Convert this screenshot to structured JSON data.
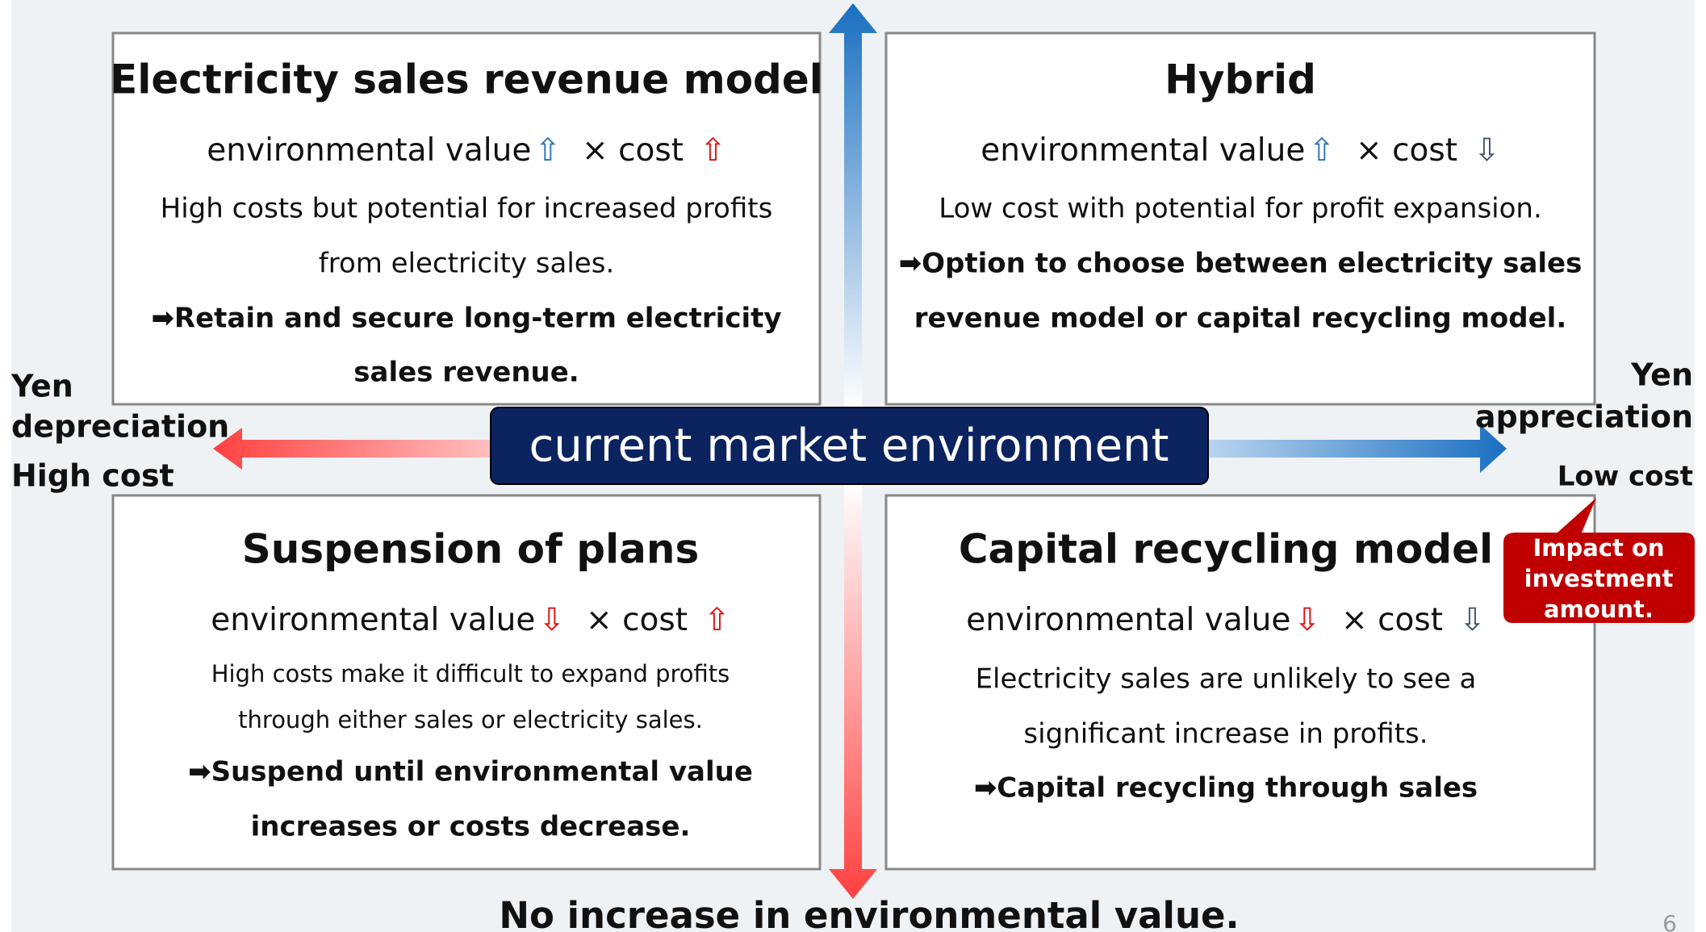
{
  "center_label": "current market environment",
  "left_axis": [
    "Yen",
    "depreciation",
    "High cost"
  ],
  "right_axis": [
    "Yen",
    "appreciation",
    "Low cost"
  ],
  "bottom_axis": "No increase in environmental value.",
  "callout": [
    "Impact on",
    "investment",
    "amount."
  ],
  "page_number": "6",
  "quadrants": [
    {
      "title": "Electricity sales revenue model",
      "formula": {
        "env_label": "environmental value",
        "env_arrow": "⇧",
        "cost_label": "× cost",
        "cost_arrow": "⇧"
      },
      "description": [
        "High costs but potential for increased profits",
        "from electricity sales."
      ],
      "conclusion": [
        "➡Retain and secure long-term electricity",
        "sales revenue."
      ]
    },
    {
      "title": "Hybrid",
      "formula": {
        "env_label": "environmental value",
        "env_arrow": "⇧",
        "cost_label": "× cost",
        "cost_arrow": "⇩"
      },
      "description": [
        "Low cost with potential for profit expansion."
      ],
      "conclusion": [
        "➡Option to choose between electricity sales",
        "revenue model or capital recycling model."
      ]
    },
    {
      "title": "Suspension of plans",
      "formula": {
        "env_label": "environmental value",
        "env_arrow": "⇩",
        "cost_label": "× cost",
        "cost_arrow": "⇧"
      },
      "description": [
        "High costs make it difficult to expand profits",
        "through either sales or electricity sales."
      ],
      "conclusion": [
        "➡Suspend until environmental value",
        "increases or costs decrease."
      ]
    },
    {
      "title": "Capital recycling model",
      "formula": {
        "env_label": "environmental value",
        "env_arrow": "⇩",
        "cost_label": "× cost",
        "cost_arrow": "⇩"
      },
      "description": [
        "Electricity sales are unlikely to see a",
        "significant increase in profits."
      ],
      "conclusion": [
        "➡Capital recycling through sales"
      ]
    }
  ]
}
